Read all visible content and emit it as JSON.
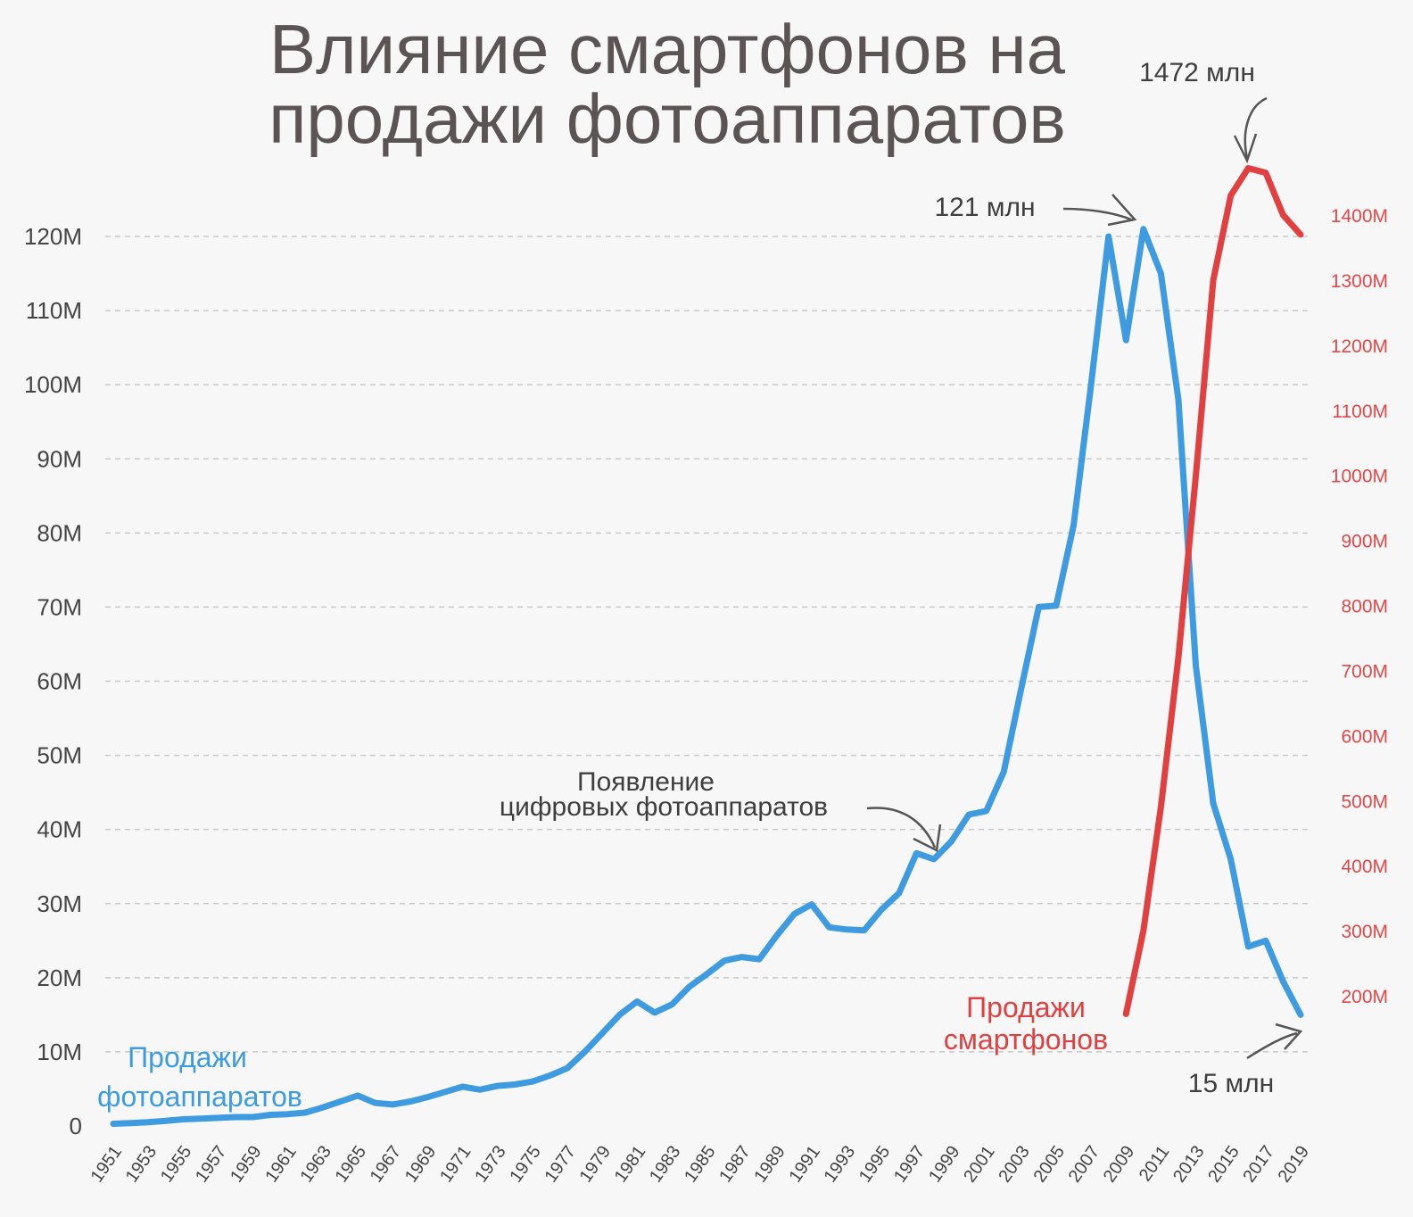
{
  "chart_data": {
    "type": "line",
    "title": [
      "Влияние смартфонов на",
      "продажи фотоаппаратов"
    ],
    "x_tick_labels": [
      "1951",
      "1953",
      "1955",
      "1957",
      "1959",
      "1961",
      "1963",
      "1965",
      "1967",
      "1969",
      "1971",
      "1973",
      "1975",
      "1977",
      "1979",
      "1981",
      "1983",
      "1985",
      "1987",
      "1989",
      "1991",
      "1993",
      "1995",
      "1997",
      "1999",
      "2001",
      "2003",
      "2005",
      "2007",
      "2009",
      "2011",
      "2013",
      "2015",
      "2017",
      "2019"
    ],
    "y_left": {
      "ylim": [
        0,
        120000000
      ],
      "tick_values": [
        0,
        10000000,
        20000000,
        30000000,
        40000000,
        50000000,
        60000000,
        70000000,
        80000000,
        90000000,
        100000000,
        110000000,
        120000000
      ],
      "tick_labels": [
        "0",
        "10M",
        "20M",
        "30M",
        "40M",
        "50M",
        "60M",
        "70M",
        "80M",
        "90M",
        "100M",
        "110M",
        "120M"
      ]
    },
    "y_right": {
      "tick_values": [
        200000000,
        300000000,
        400000000,
        500000000,
        600000000,
        700000000,
        800000000,
        900000000,
        1000000000,
        1100000000,
        1200000000,
        1300000000,
        1400000000
      ],
      "tick_labels": [
        "200M",
        "300M",
        "400M",
        "500M",
        "600M",
        "700M",
        "800M",
        "900M",
        "1000M",
        "1100M",
        "1200M",
        "1300M",
        "1400M"
      ]
    },
    "grid": "horizontal-dashed",
    "series": [
      {
        "name": "Продажи фотоаппаратов",
        "axis": "left",
        "color": "#3e9be0",
        "x": [
          1951,
          1952,
          1953,
          1954,
          1955,
          1956,
          1957,
          1958,
          1959,
          1960,
          1961,
          1962,
          1963,
          1964,
          1965,
          1966,
          1967,
          1968,
          1969,
          1970,
          1971,
          1972,
          1973,
          1974,
          1975,
          1976,
          1977,
          1978,
          1979,
          1980,
          1981,
          1982,
          1983,
          1984,
          1985,
          1986,
          1987,
          1988,
          1989,
          1990,
          1991,
          1992,
          1993,
          1994,
          1995,
          1996,
          1997,
          1998,
          1999,
          2000,
          2001,
          2002,
          2003,
          2004,
          2005,
          2006,
          2007,
          2008,
          2009,
          2010,
          2011,
          2012,
          2013,
          2014,
          2015,
          2016,
          2017,
          2018,
          2019
        ],
        "y": [
          0.3,
          0.4,
          0.5,
          0.7,
          0.9,
          1.0,
          1.1,
          1.2,
          1.2,
          1.5,
          1.6,
          1.8,
          2.5,
          3.3,
          4.1,
          3.1,
          2.9,
          3.3,
          3.9,
          4.6,
          5.3,
          4.9,
          5.4,
          5.6,
          6.0,
          6.8,
          7.8,
          10.0,
          12.5,
          15.0,
          16.8,
          15.3,
          16.4,
          18.8,
          20.5,
          22.3,
          22.8,
          22.5,
          25.7,
          28.6,
          29.9,
          26.8,
          26.5,
          26.4,
          29.2,
          31.4,
          36.8,
          36.0,
          38.4,
          42.0,
          42.5,
          47.8,
          59.0,
          70.0,
          70.2,
          81.0,
          100.0,
          120.0,
          106.0,
          121.0,
          115.0,
          98.0,
          62.0,
          43.5,
          36.0,
          24.2,
          25.0,
          19.5,
          15.0
        ],
        "y_unit": "M"
      },
      {
        "name": "Продажи смартфонов",
        "axis": "right",
        "color": "#e04040",
        "x": [
          2009,
          2010,
          2011,
          2012,
          2013,
          2014,
          2015,
          2016,
          2017,
          2018,
          2019
        ],
        "y": [
          172,
          300,
          490,
          720,
          1000,
          1300,
          1430,
          1472,
          1465,
          1400,
          1370
        ],
        "y_unit": "M"
      }
    ],
    "annotations": [
      {
        "text": "121 млн"
      },
      {
        "text": "1472 млн"
      },
      {
        "text": "15 млн"
      },
      {
        "text": [
          "Появление",
          "цифровых фотоаппаратов"
        ]
      }
    ],
    "series_labels": [
      {
        "text": [
          "Продажи",
          "фотоаппаратов"
        ],
        "color": "#3e9be0"
      },
      {
        "text": [
          "Продажи",
          "смартфонов"
        ],
        "color": "#e04040"
      }
    ]
  }
}
